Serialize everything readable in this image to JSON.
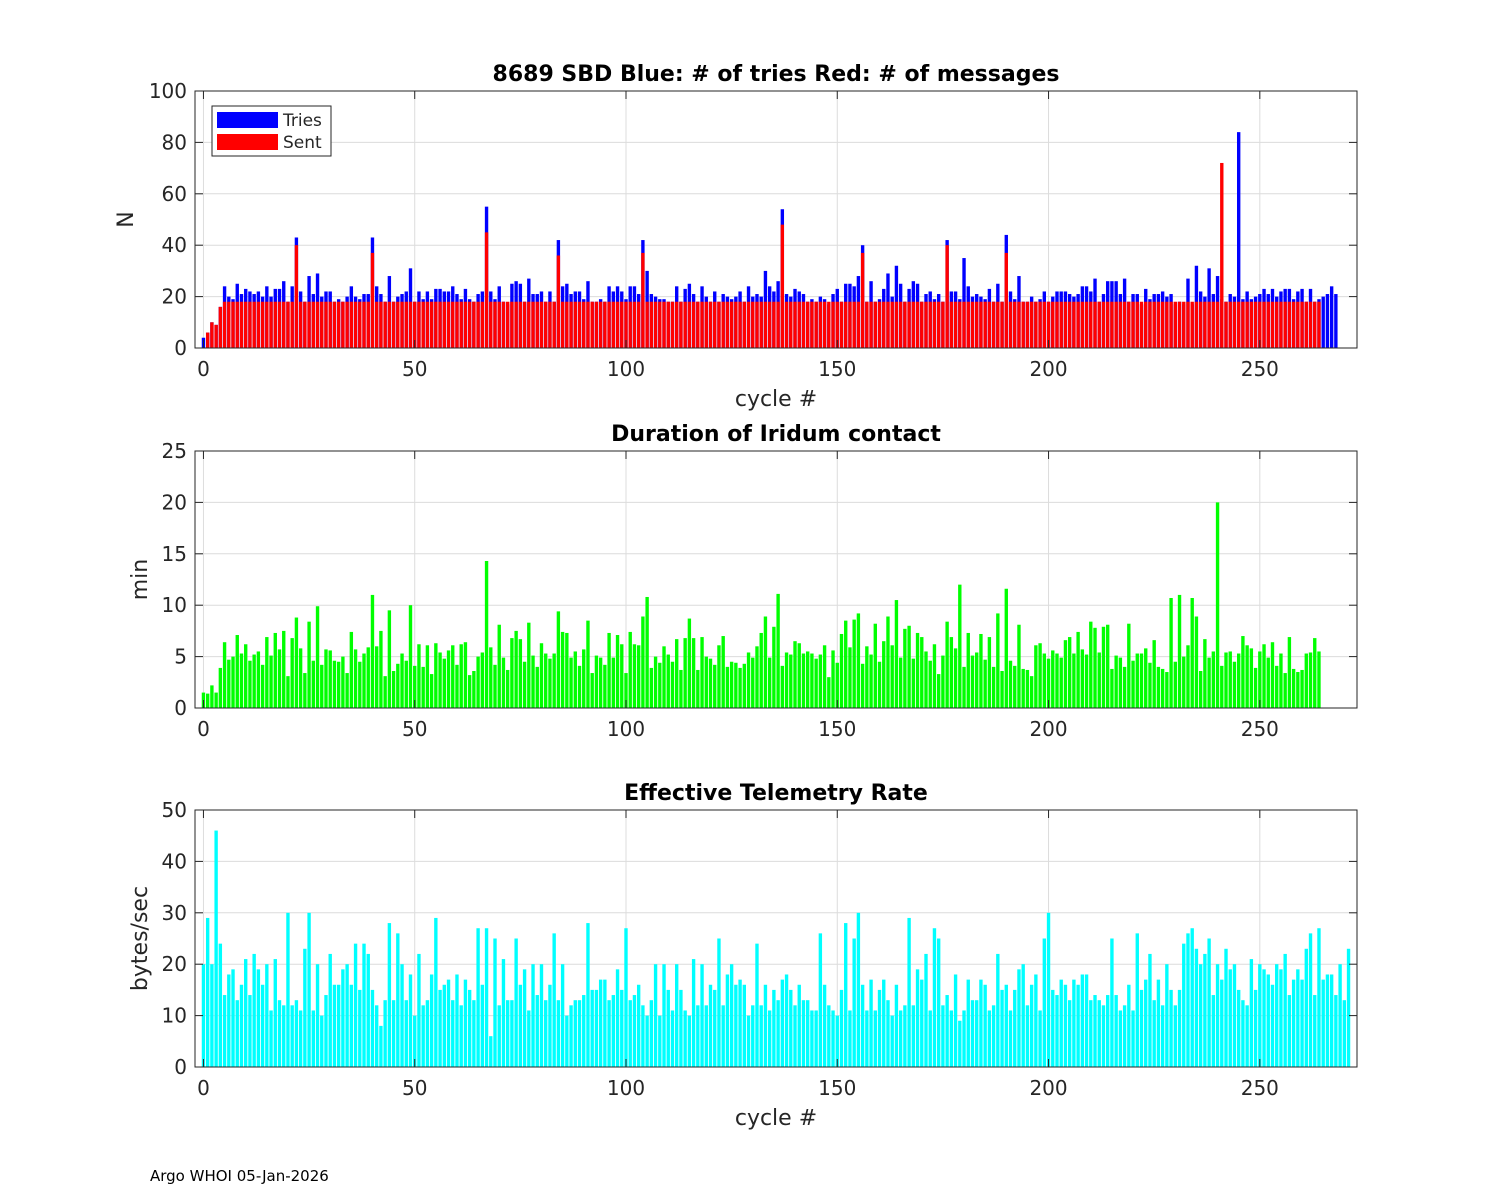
{
  "footer": "Argo WHOI 05-Jan-2026",
  "chart_data": [
    {
      "type": "bar",
      "stacked": true,
      "title": "8689 SBD  Blue: # of tries   Red: # of messages",
      "xlabel": "cycle #",
      "ylabel": "N",
      "xlim": [
        -2,
        273
      ],
      "ylim": [
        0,
        100
      ],
      "xticks": [
        0,
        50,
        100,
        150,
        200,
        250
      ],
      "yticks": [
        0,
        20,
        40,
        60,
        80,
        100
      ],
      "grid": true,
      "legend": {
        "position": "top-left",
        "entries": [
          {
            "label": "Tries",
            "color": "#0000ff"
          },
          {
            "label": "Sent",
            "color": "#ff0000"
          }
        ]
      },
      "x_start": 0,
      "series": [
        {
          "name": "Tries",
          "color": "#0000ff",
          "values": [
            4,
            6,
            10,
            9,
            16,
            24,
            20,
            19,
            25,
            21,
            23,
            22,
            21,
            22,
            20,
            24,
            20,
            23,
            23,
            26,
            18,
            24,
            43,
            22,
            18,
            28,
            21,
            29,
            20,
            22,
            22,
            18,
            19,
            18,
            20,
            24,
            20,
            19,
            21,
            21,
            43,
            24,
            21,
            18,
            28,
            18,
            20,
            21,
            22,
            31,
            18,
            22,
            19,
            22,
            19,
            23,
            23,
            22,
            22,
            24,
            21,
            19,
            23,
            19,
            18,
            21,
            22,
            55,
            22,
            19,
            24,
            18,
            17,
            25,
            26,
            25,
            18,
            27,
            21,
            21,
            22,
            18,
            22,
            18,
            42,
            24,
            25,
            21,
            22,
            22,
            19,
            26,
            18,
            18,
            19,
            18,
            24,
            22,
            24,
            22,
            19,
            24,
            24,
            21,
            42,
            30,
            21,
            20,
            19,
            19,
            18,
            18,
            24,
            18,
            23,
            25,
            21,
            18,
            24,
            20,
            18,
            22,
            18,
            21,
            20,
            19,
            20,
            22,
            18,
            24,
            20,
            21,
            20,
            30,
            24,
            22,
            26,
            54,
            21,
            20,
            23,
            22,
            21,
            18,
            19,
            18,
            20,
            19,
            17,
            21,
            23,
            18,
            25,
            25,
            24,
            28,
            40,
            18,
            26,
            18,
            19,
            23,
            29,
            20,
            32,
            25,
            18,
            23,
            26,
            25,
            18,
            21,
            22,
            19,
            21,
            18,
            42,
            22,
            22,
            19,
            35,
            24,
            20,
            21,
            20,
            19,
            23,
            18,
            25,
            18,
            44,
            22,
            19,
            28,
            18,
            18,
            20,
            18,
            19,
            22,
            18,
            20,
            22,
            22,
            22,
            21,
            20,
            21,
            24,
            24,
            22,
            27,
            18,
            21,
            26,
            26,
            26,
            21,
            27,
            18,
            21,
            21,
            17,
            23,
            19,
            21,
            21,
            22,
            20,
            21,
            17,
            18,
            17,
            27,
            17,
            32,
            22,
            20,
            31,
            21,
            28,
            19,
            18,
            21,
            20,
            84,
            19,
            22,
            19,
            20,
            21,
            23,
            21,
            23,
            20,
            22,
            23,
            23,
            19,
            22,
            23,
            18,
            23,
            18,
            19,
            20,
            21,
            24,
            21
          ]
        },
        {
          "name": "Sent",
          "color": "#ff0000",
          "values": [
            0,
            6,
            10,
            9,
            16,
            18,
            18,
            18,
            18,
            18,
            18,
            18,
            18,
            18,
            18,
            18,
            18,
            18,
            18,
            18,
            18,
            18,
            40,
            18,
            18,
            18,
            18,
            18,
            18,
            18,
            18,
            18,
            18,
            18,
            18,
            18,
            18,
            18,
            18,
            18,
            37,
            18,
            18,
            18,
            18,
            18,
            18,
            18,
            18,
            18,
            18,
            18,
            18,
            18,
            18,
            18,
            18,
            18,
            18,
            18,
            18,
            18,
            18,
            18,
            18,
            18,
            18,
            45,
            18,
            18,
            18,
            18,
            18,
            18,
            18,
            18,
            18,
            18,
            18,
            18,
            18,
            18,
            18,
            18,
            36,
            18,
            18,
            18,
            18,
            18,
            18,
            18,
            18,
            18,
            18,
            18,
            18,
            18,
            18,
            18,
            18,
            18,
            18,
            18,
            37,
            18,
            18,
            18,
            18,
            18,
            18,
            18,
            18,
            18,
            18,
            18,
            18,
            18,
            18,
            18,
            18,
            18,
            18,
            18,
            18,
            18,
            18,
            18,
            18,
            18,
            18,
            18,
            18,
            18,
            18,
            18,
            18,
            48,
            18,
            18,
            18,
            18,
            18,
            18,
            18,
            18,
            18,
            18,
            18,
            18,
            18,
            18,
            18,
            18,
            18,
            18,
            37,
            18,
            18,
            18,
            18,
            18,
            18,
            18,
            18,
            18,
            18,
            18,
            18,
            18,
            18,
            18,
            18,
            18,
            18,
            18,
            40,
            18,
            18,
            18,
            18,
            18,
            18,
            18,
            18,
            18,
            18,
            18,
            18,
            18,
            37,
            18,
            18,
            18,
            18,
            18,
            18,
            18,
            18,
            18,
            18,
            18,
            18,
            18,
            18,
            18,
            18,
            18,
            18,
            18,
            18,
            18,
            18,
            18,
            18,
            18,
            18,
            18,
            18,
            18,
            18,
            18,
            18,
            18,
            18,
            18,
            18,
            18,
            18,
            18,
            18,
            18,
            18,
            18,
            18,
            18,
            18,
            18,
            18,
            18,
            18,
            72,
            18,
            18,
            18,
            18,
            18,
            18,
            18,
            18,
            18,
            18,
            18,
            18,
            18,
            18,
            18,
            18,
            18,
            18,
            18,
            18,
            18,
            18,
            18
          ]
        }
      ]
    },
    {
      "type": "bar",
      "title": "Duration of Iridum contact",
      "xlabel": "",
      "ylabel": "min",
      "xlim": [
        -2,
        273
      ],
      "ylim": [
        0,
        25
      ],
      "xticks": [
        0,
        50,
        100,
        150,
        200,
        250
      ],
      "yticks": [
        0,
        5,
        10,
        15,
        20,
        25
      ],
      "grid": true,
      "x_start": 0,
      "color": "#00ff00",
      "values": [
        1.5,
        1.4,
        2.2,
        1.5,
        3.9,
        6.4,
        4.7,
        5.0,
        7.1,
        5.3,
        6.2,
        4.6,
        5.2,
        5.5,
        4.2,
        6.9,
        5.1,
        7.3,
        5.7,
        7.5,
        3.1,
        6.8,
        8.8,
        5.8,
        3.4,
        8.4,
        4.6,
        9.9,
        4.2,
        5.7,
        5.6,
        4.6,
        4.5,
        5.0,
        3.4,
        7.4,
        5.7,
        4.5,
        5.3,
        5.9,
        11.0,
        6.0,
        7.5,
        3.1,
        9.5,
        3.6,
        4.3,
        5.3,
        4.6,
        10.0,
        4.1,
        6.2,
        4.0,
        6.1,
        3.3,
        6.3,
        5.4,
        4.8,
        5.6,
        6.1,
        4.2,
        6.2,
        6.4,
        3.2,
        3.6,
        5.0,
        5.4,
        14.3,
        5.9,
        4.2,
        8.1,
        4.9,
        3.7,
        6.8,
        7.5,
        6.7,
        4.5,
        8.3,
        5.1,
        4.0,
        6.3,
        5.3,
        4.8,
        5.3,
        9.4,
        7.4,
        7.3,
        4.9,
        5.5,
        4.1,
        5.7,
        8.5,
        3.4,
        5.1,
        4.9,
        4.2,
        7.3,
        4.9,
        7.1,
        6.2,
        3.4,
        7.4,
        6.2,
        6.1,
        8.9,
        10.8,
        3.9,
        5.0,
        4.4,
        6.0,
        5.2,
        4.5,
        6.7,
        3.7,
        6.8,
        8.7,
        6.8,
        3.7,
        6.9,
        5.0,
        4.8,
        4.2,
        6.1,
        7.0,
        4.0,
        4.5,
        4.4,
        3.9,
        4.3,
        5.4,
        4.9,
        6.0,
        7.3,
        8.9,
        4.9,
        7.9,
        11.1,
        4.1,
        5.4,
        5.2,
        6.5,
        6.3,
        5.3,
        5.5,
        5.3,
        4.8,
        5.2,
        6.1,
        3.0,
        5.6,
        4.4,
        7.2,
        8.5,
        5.9,
        8.6,
        9.2,
        4.3,
        6.0,
        5.2,
        8.2,
        4.5,
        6.5,
        8.9,
        6.1,
        10.5,
        4.9,
        7.7,
        8.0,
        4.8,
        7.3,
        6.9,
        5.5,
        4.6,
        6.2,
        3.3,
        5.1,
        8.4,
        6.9,
        5.8,
        12.0,
        4.0,
        7.3,
        5.1,
        5.4,
        7.2,
        4.7,
        6.9,
        4.0,
        9.2,
        3.6,
        11.6,
        4.6,
        4.1,
        8.1,
        3.8,
        3.7,
        3.1,
        6.1,
        6.3,
        5.3,
        4.8,
        5.6,
        5.3,
        4.9,
        6.6,
        6.9,
        5.3,
        7.4,
        5.7,
        5.2,
        8.4,
        7.8,
        5.4,
        7.9,
        8.1,
        3.8,
        5.1,
        4.9,
        4.0,
        8.2,
        4.6,
        5.3,
        5.3,
        5.8,
        4.4,
        6.6,
        4.0,
        3.8,
        3.5,
        10.7,
        4.5,
        11.0,
        5.0,
        6.1,
        10.7,
        8.9,
        3.6,
        6.7,
        4.9,
        5.5,
        20.0,
        4.1,
        5.4,
        5.5,
        4.5,
        5.3,
        7.0,
        6.1,
        5.8,
        3.9,
        5.5,
        6.2,
        4.9,
        6.4,
        4.1,
        5.3,
        3.4,
        6.9,
        3.8,
        3.5,
        3.7,
        5.3,
        5.4,
        6.8,
        5.5
      ]
    },
    {
      "type": "bar",
      "title": "Effective Telemetry Rate",
      "xlabel": "cycle #",
      "ylabel": "bytes/sec",
      "xlim": [
        -2,
        273
      ],
      "ylim": [
        0,
        50
      ],
      "xticks": [
        0,
        50,
        100,
        150,
        200,
        250
      ],
      "yticks": [
        0,
        10,
        20,
        30,
        40,
        50
      ],
      "grid": true,
      "x_start": 0,
      "color": "#00ffff",
      "values": [
        20,
        29,
        20,
        46,
        24,
        14,
        18,
        19,
        13,
        16,
        21,
        14,
        22,
        19,
        16,
        20,
        11,
        21,
        13,
        12,
        30,
        12,
        13,
        11,
        23,
        30,
        11,
        20,
        10,
        14,
        22,
        16,
        16,
        19,
        20,
        16,
        24,
        15,
        24,
        22,
        15,
        12,
        8,
        13,
        28,
        13,
        26,
        20,
        13,
        18,
        10,
        22,
        12,
        13,
        18,
        29,
        15,
        16,
        17,
        13,
        18,
        12,
        17,
        15,
        13,
        27,
        16,
        27,
        6,
        25,
        12,
        21,
        13,
        13,
        25,
        16,
        19,
        11,
        20,
        14,
        20,
        13,
        16,
        26,
        13,
        20,
        10,
        12,
        13,
        13,
        14,
        28,
        15,
        15,
        17,
        17,
        13,
        14,
        19,
        15,
        27,
        13,
        14,
        16,
        12,
        10,
        13,
        20,
        10,
        20,
        15,
        11,
        20,
        15,
        11,
        10,
        21,
        12,
        20,
        12,
        16,
        15,
        25,
        12,
        18,
        20,
        16,
        17,
        16,
        10,
        12,
        24,
        12,
        16,
        11,
        15,
        13,
        17,
        18,
        15,
        12,
        16,
        13,
        13,
        11,
        11,
        26,
        16,
        12,
        11,
        10,
        15,
        28,
        11,
        25,
        30,
        16,
        11,
        17,
        11,
        15,
        17,
        13,
        10,
        16,
        11,
        12,
        29,
        12,
        19,
        17,
        22,
        11,
        27,
        25,
        12,
        14,
        11,
        18,
        9,
        11,
        17,
        13,
        13,
        17,
        16,
        11,
        12,
        22,
        15,
        16,
        11,
        15,
        19,
        20,
        12,
        16,
        18,
        11,
        25,
        30,
        15,
        14,
        17,
        16,
        13,
        17,
        16,
        18,
        18,
        13,
        14,
        13,
        12,
        14,
        25,
        14,
        11,
        12,
        16,
        11,
        26,
        15,
        17,
        22,
        13,
        17,
        12,
        20,
        15,
        12,
        15,
        24,
        26,
        27,
        23,
        20,
        22,
        25,
        14,
        20,
        17,
        23,
        19,
        20,
        15,
        13,
        12,
        21,
        15,
        20,
        19,
        18,
        16,
        20,
        19,
        22,
        14,
        17,
        19,
        17,
        23,
        26,
        14,
        27,
        17,
        18,
        18,
        14,
        20,
        13,
        23
      ]
    }
  ]
}
